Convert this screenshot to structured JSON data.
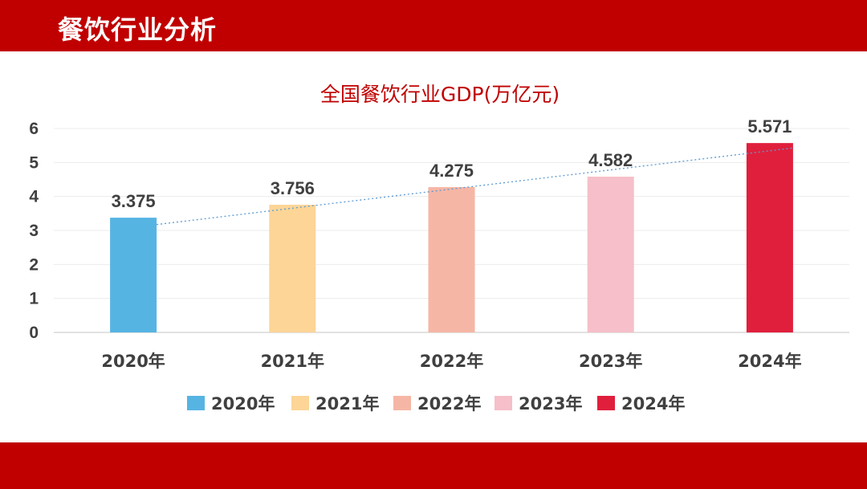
{
  "header": {
    "title": "餐饮行业分析"
  },
  "chart_data": {
    "type": "bar",
    "title": "全国餐饮行业GDP(万亿元)",
    "categories": [
      "2020年",
      "2021年",
      "2022年",
      "2023年",
      "2024年"
    ],
    "values": [
      3.375,
      3.756,
      4.275,
      4.582,
      5.571
    ],
    "data_labels": [
      "3.375",
      "3.756",
      "4.275",
      "4.582",
      "5.571"
    ],
    "bar_colors": [
      "#56b4e3",
      "#fcd597",
      "#f6b6a5",
      "#f6bfc9",
      "#e01f3c"
    ],
    "ylim": [
      0,
      6
    ],
    "yticks": [
      "0",
      "1",
      "2",
      "3",
      "4",
      "5",
      "6"
    ],
    "grid": true,
    "trendline": {
      "style": "dotted",
      "color": "#5b9bd5"
    },
    "legend": {
      "position": "bottom",
      "entries": [
        "2020年",
        "2021年",
        "2022年",
        "2023年",
        "2024年"
      ]
    }
  }
}
